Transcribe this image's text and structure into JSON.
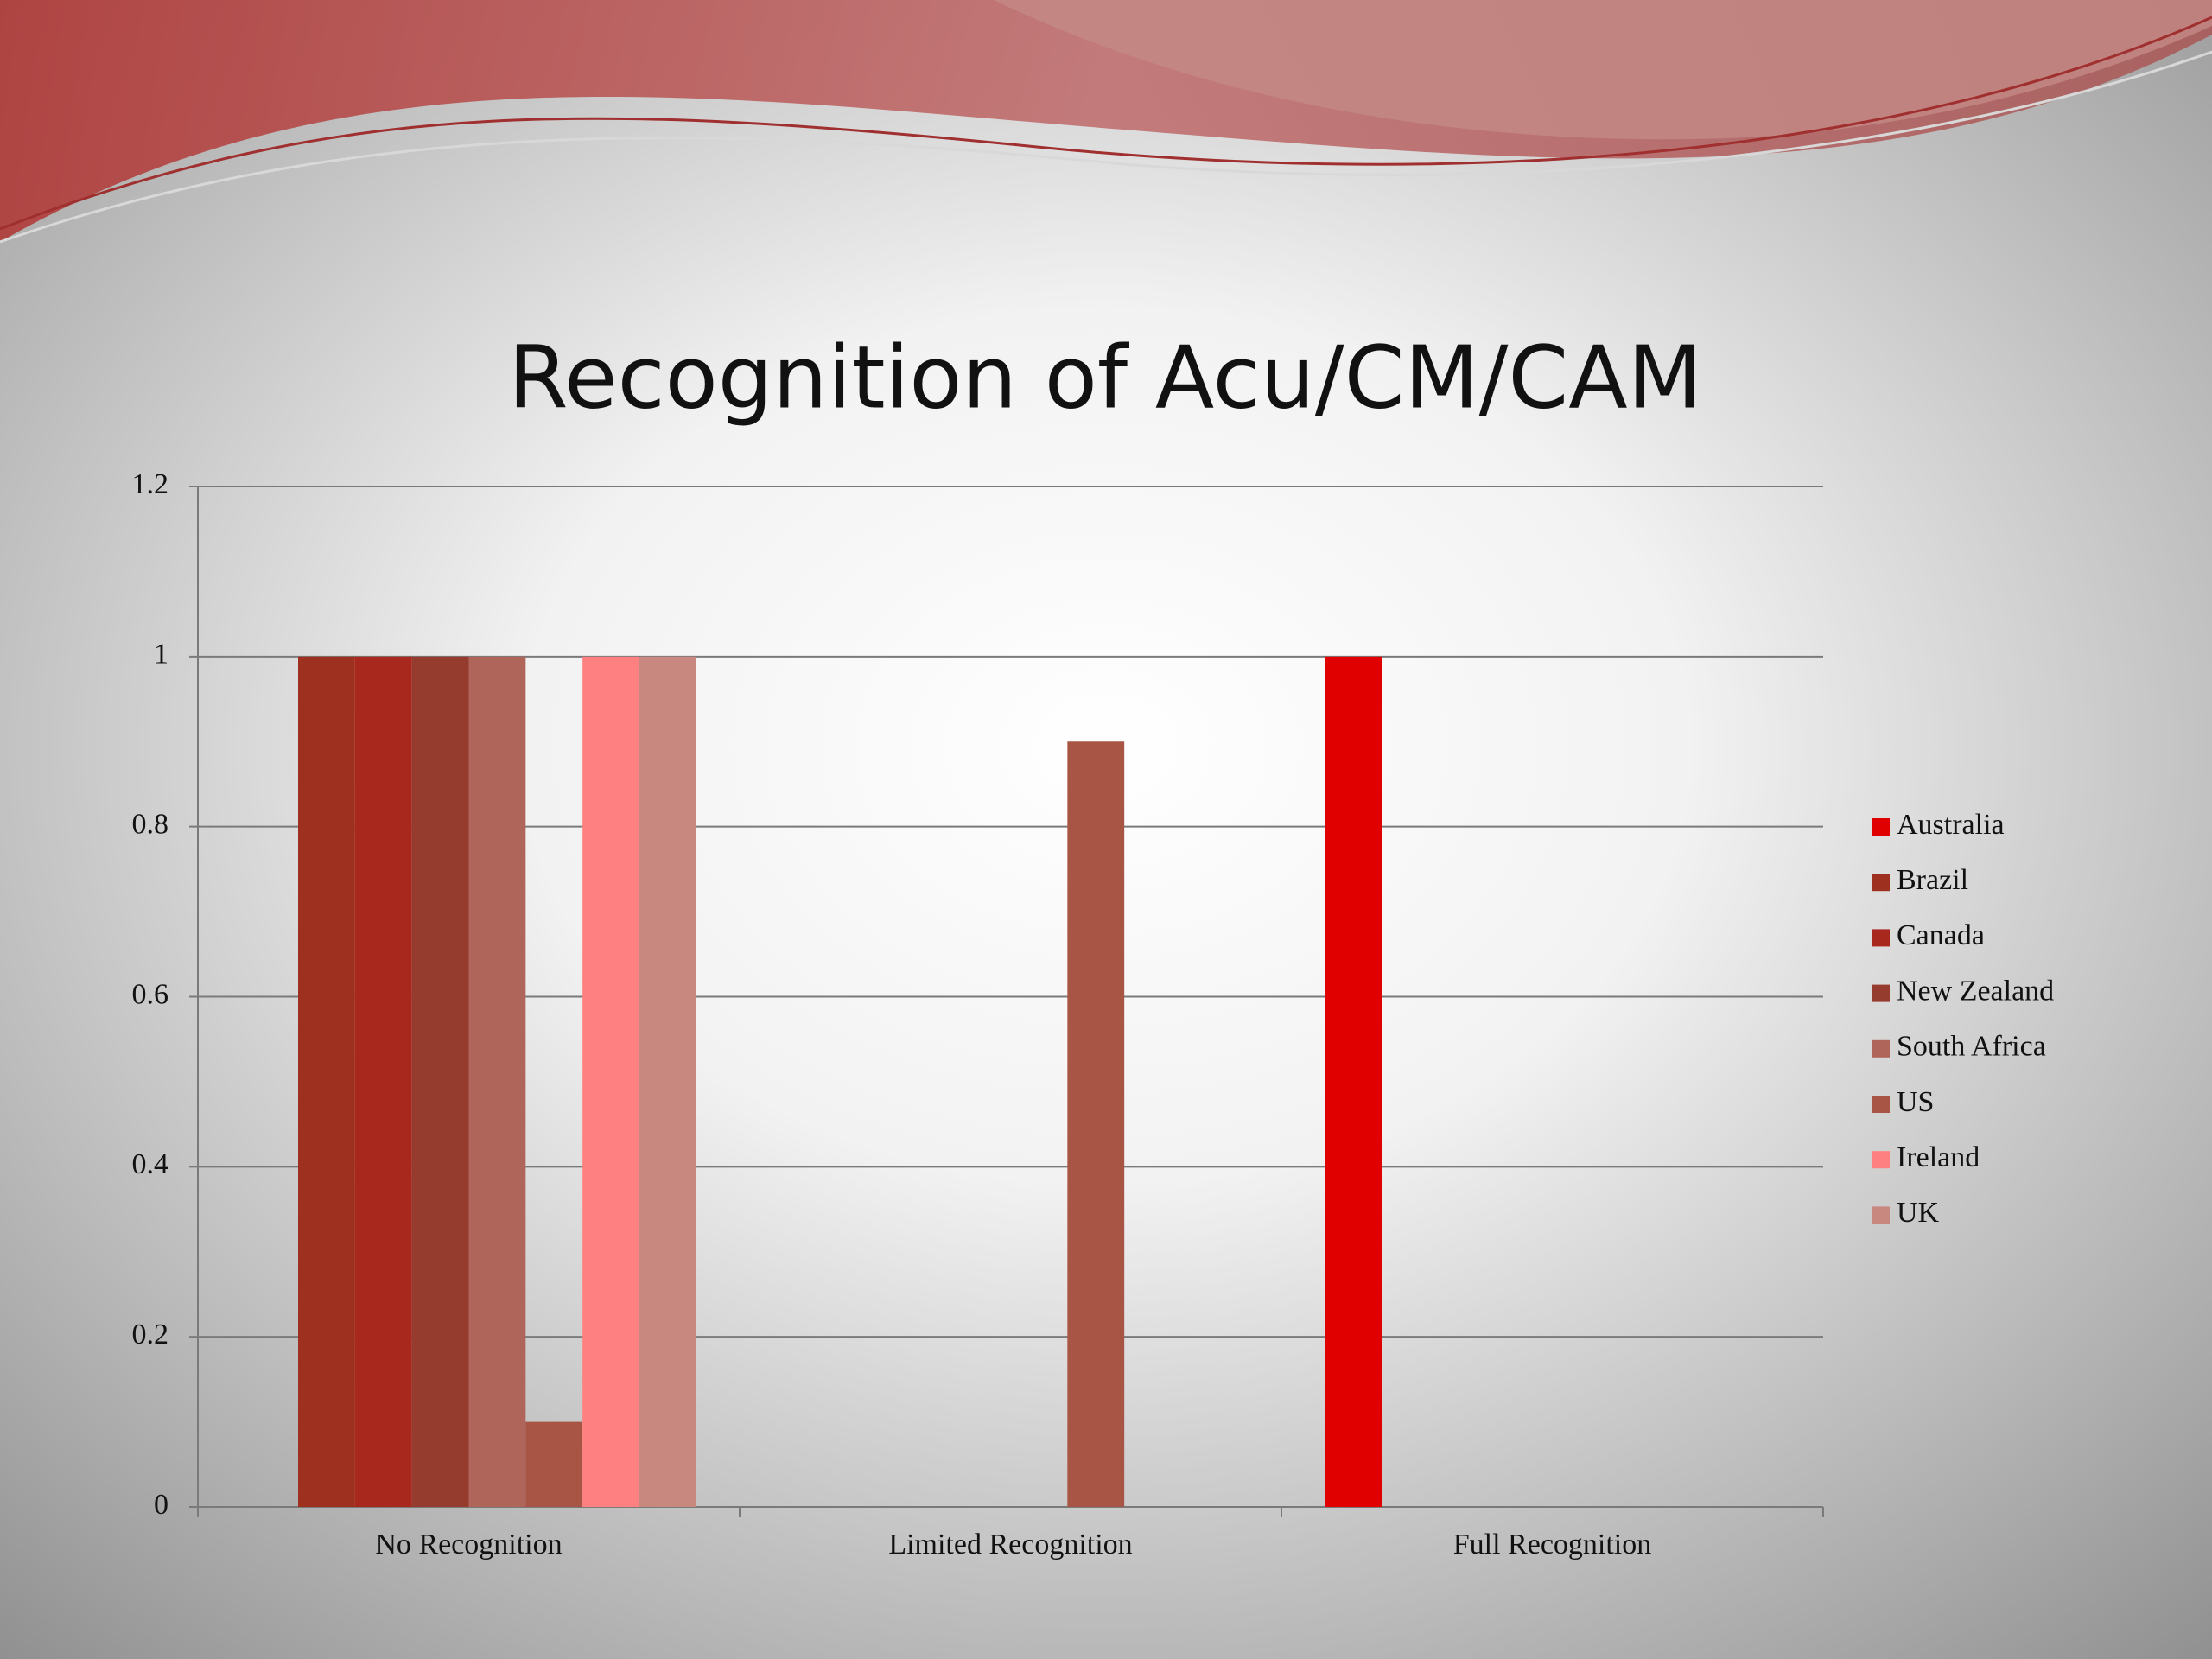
{
  "chart_data": {
    "type": "bar",
    "title": "Recognition of Acu/CM/CAM",
    "categories": [
      "No Recognition",
      "Limited Recognition",
      "Full Recognition"
    ],
    "series": [
      {
        "name": "Australia",
        "color": "#e00000",
        "values": [
          0,
          0,
          1
        ]
      },
      {
        "name": "Brazil",
        "color": "#9e3020",
        "values": [
          1,
          0,
          0
        ]
      },
      {
        "name": "Canada",
        "color": "#a8281e",
        "values": [
          1,
          0,
          0
        ]
      },
      {
        "name": "New Zealand",
        "color": "#963c2e",
        "values": [
          1,
          0,
          0
        ]
      },
      {
        "name": "South Africa",
        "color": "#b0655a",
        "values": [
          1,
          0,
          0
        ]
      },
      {
        "name": "US",
        "color": "#a85545",
        "values": [
          0.1,
          0.9,
          0
        ]
      },
      {
        "name": "Ireland",
        "color": "#ff8080",
        "values": [
          1,
          0,
          0
        ]
      },
      {
        "name": "UK",
        "color": "#c88880",
        "values": [
          1,
          0,
          0
        ]
      }
    ],
    "ylim": [
      0,
      1.2
    ],
    "yticks": [
      0,
      0.2,
      0.4,
      0.6,
      0.8,
      1,
      1.2
    ],
    "grid": true,
    "legend": "right"
  }
}
